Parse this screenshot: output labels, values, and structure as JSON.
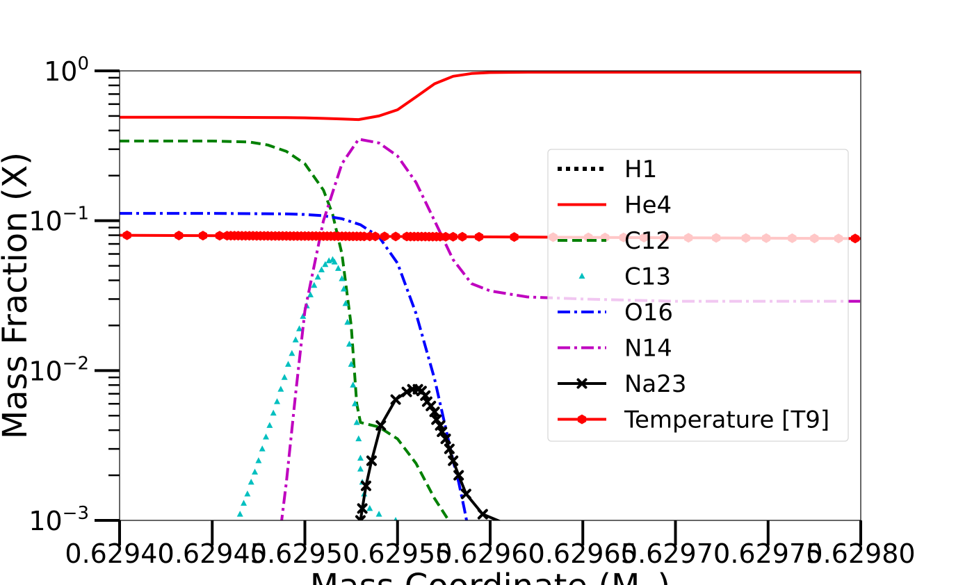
{
  "chart_data": {
    "type": "line",
    "xlabel": "Mass Coordinate (M",
    "xlabel_sub": "⊙",
    "xlabel_close": ")",
    "ylabel": "Mass Fraction (X)",
    "xlim": [
      0.6294,
      0.6298
    ],
    "ylim": [
      0.001,
      1
    ],
    "yscale": "log",
    "x_ticks": [
      {
        "value": 0.6294,
        "label": "0.62940"
      },
      {
        "value": 0.62945,
        "label": "0.62945"
      },
      {
        "value": 0.6295,
        "label": "0.62950"
      },
      {
        "value": 0.62955,
        "label": "0.62955"
      },
      {
        "value": 0.6296,
        "label": "0.62960"
      },
      {
        "value": 0.62965,
        "label": "0.62965"
      },
      {
        "value": 0.6297,
        "label": "0.62970"
      },
      {
        "value": 0.62975,
        "label": "0.62975"
      },
      {
        "value": 0.6298,
        "label": "0.62980"
      }
    ],
    "y_ticks": [
      {
        "value": 1,
        "base": "10",
        "exp": "0"
      },
      {
        "value": 0.1,
        "base": "10",
        "exp": "−1"
      },
      {
        "value": 0.01,
        "base": "10",
        "exp": "−2"
      },
      {
        "value": 0.001,
        "base": "10",
        "exp": "−3"
      }
    ],
    "grid": false,
    "legend_position": "center-right",
    "series": [
      {
        "name": "H1",
        "color": "#000000",
        "style": "dotted",
        "marker": "none",
        "points": []
      },
      {
        "name": "He4",
        "color": "#ff0000",
        "style": "solid",
        "marker": "none",
        "points": [
          [
            0.6294,
            0.49
          ],
          [
            0.62945,
            0.49
          ],
          [
            0.62949,
            0.488
          ],
          [
            0.6295,
            0.486
          ],
          [
            0.62951,
            0.482
          ],
          [
            0.62952,
            0.477
          ],
          [
            0.629529,
            0.473
          ],
          [
            0.62954,
            0.5
          ],
          [
            0.62955,
            0.55
          ],
          [
            0.62956,
            0.67
          ],
          [
            0.62957,
            0.82
          ],
          [
            0.62958,
            0.92
          ],
          [
            0.62959,
            0.96
          ],
          [
            0.6296,
            0.975
          ],
          [
            0.62962,
            0.98
          ],
          [
            0.6298,
            0.98
          ]
        ]
      },
      {
        "name": "C12",
        "color": "#008000",
        "style": "dashed",
        "marker": "none",
        "points": [
          [
            0.6294,
            0.34
          ],
          [
            0.62945,
            0.34
          ],
          [
            0.62947,
            0.335
          ],
          [
            0.62948,
            0.32
          ],
          [
            0.62949,
            0.29
          ],
          [
            0.6295,
            0.24
          ],
          [
            0.62951,
            0.16
          ],
          [
            0.629515,
            0.11
          ],
          [
            0.62952,
            0.06
          ],
          [
            0.629525,
            0.02
          ],
          [
            0.629528,
            0.006
          ],
          [
            0.62953,
            0.0045
          ],
          [
            0.62954,
            0.0042
          ],
          [
            0.62955,
            0.0035
          ],
          [
            0.62956,
            0.0024
          ],
          [
            0.62957,
            0.0014
          ],
          [
            0.62958,
            0.0009
          ]
        ]
      },
      {
        "name": "C13",
        "color": "#00bfbf",
        "style": "none",
        "marker": "triangle",
        "points": [
          [
            0.629463,
            0.00095
          ],
          [
            0.629465,
            0.0011
          ],
          [
            0.629467,
            0.0013
          ],
          [
            0.629469,
            0.0015
          ],
          [
            0.629471,
            0.0018
          ],
          [
            0.629473,
            0.0021
          ],
          [
            0.629475,
            0.0025
          ],
          [
            0.629477,
            0.003
          ],
          [
            0.629479,
            0.0036
          ],
          [
            0.629481,
            0.0043
          ],
          [
            0.629483,
            0.0052
          ],
          [
            0.629485,
            0.0062
          ],
          [
            0.629487,
            0.0075
          ],
          [
            0.629489,
            0.009
          ],
          [
            0.629491,
            0.011
          ],
          [
            0.629493,
            0.013
          ],
          [
            0.629495,
            0.016
          ],
          [
            0.629497,
            0.019
          ],
          [
            0.629499,
            0.023
          ],
          [
            0.629501,
            0.027
          ],
          [
            0.629503,
            0.032
          ],
          [
            0.629505,
            0.037
          ],
          [
            0.629507,
            0.042
          ],
          [
            0.629509,
            0.047
          ],
          [
            0.629511,
            0.051
          ],
          [
            0.629513,
            0.054
          ],
          [
            0.629515,
            0.055
          ],
          [
            0.629516,
            0.053
          ],
          [
            0.629518,
            0.048
          ],
          [
            0.62952,
            0.041
          ],
          [
            0.629521,
            0.035
          ],
          [
            0.629522,
            0.028
          ],
          [
            0.629523,
            0.021
          ],
          [
            0.629524,
            0.015
          ],
          [
            0.629525,
            0.011
          ],
          [
            0.629526,
            0.008
          ],
          [
            0.629527,
            0.006
          ],
          [
            0.629528,
            0.0045
          ],
          [
            0.629529,
            0.0035
          ],
          [
            0.62953,
            0.0026
          ],
          [
            0.62953,
            0.0022
          ],
          [
            0.629531,
            0.0018
          ],
          [
            0.629532,
            0.0015
          ],
          [
            0.629535,
            0.0012
          ],
          [
            0.62954,
            0.0011
          ],
          [
            0.629549,
            0.001
          ]
        ]
      },
      {
        "name": "O16",
        "color": "#0000ff",
        "style": "dashdot",
        "marker": "none",
        "points": [
          [
            0.6294,
            0.112
          ],
          [
            0.62945,
            0.112
          ],
          [
            0.62949,
            0.111
          ],
          [
            0.6295,
            0.11
          ],
          [
            0.62951,
            0.108
          ],
          [
            0.62952,
            0.103
          ],
          [
            0.62953,
            0.094
          ],
          [
            0.62954,
            0.078
          ],
          [
            0.62955,
            0.052
          ],
          [
            0.62956,
            0.024
          ],
          [
            0.62957,
            0.0088
          ],
          [
            0.62958,
            0.0025
          ],
          [
            0.629583,
            0.0018
          ],
          [
            0.629586,
            0.0012
          ],
          [
            0.629588,
            0.0009
          ]
        ]
      },
      {
        "name": "N14",
        "color": "#bf00bf",
        "style": "dashdot",
        "marker": "none",
        "points": [
          [
            0.629487,
            0.0009
          ],
          [
            0.62949,
            0.0018
          ],
          [
            0.629495,
            0.007
          ],
          [
            0.6295,
            0.025
          ],
          [
            0.62951,
            0.1
          ],
          [
            0.62952,
            0.24
          ],
          [
            0.629529,
            0.35
          ],
          [
            0.62954,
            0.33
          ],
          [
            0.62955,
            0.27
          ],
          [
            0.62956,
            0.18
          ],
          [
            0.62957,
            0.1
          ],
          [
            0.62958,
            0.055
          ],
          [
            0.62959,
            0.038
          ],
          [
            0.6296,
            0.034
          ],
          [
            0.62962,
            0.031
          ],
          [
            0.62965,
            0.03
          ],
          [
            0.6297,
            0.029
          ],
          [
            0.6298,
            0.029
          ]
        ]
      },
      {
        "name": "Na23",
        "color": "#000000",
        "style": "solid",
        "marker": "x",
        "points": [
          [
            0.629529,
            0.0009
          ],
          [
            0.62953,
            0.001
          ],
          [
            0.629531,
            0.0012
          ],
          [
            0.629533,
            0.0017
          ],
          [
            0.629536,
            0.0025
          ],
          [
            0.629541,
            0.0043
          ],
          [
            0.629549,
            0.0064
          ],
          [
            0.629555,
            0.0072
          ],
          [
            0.629558,
            0.0075
          ],
          [
            0.629561,
            0.0075
          ],
          [
            0.629563,
            0.0073
          ],
          [
            0.629565,
            0.0068
          ],
          [
            0.629566,
            0.0062
          ],
          [
            0.629568,
            0.0058
          ],
          [
            0.62957,
            0.0053
          ],
          [
            0.629571,
            0.0047
          ],
          [
            0.629573,
            0.0043
          ],
          [
            0.629574,
            0.0039
          ],
          [
            0.629576,
            0.0035
          ],
          [
            0.629578,
            0.003
          ],
          [
            0.62958,
            0.0025
          ],
          [
            0.629583,
            0.002
          ],
          [
            0.629587,
            0.0015
          ],
          [
            0.629596,
            0.0011
          ],
          [
            0.629613,
            0.0009
          ]
        ]
      },
      {
        "name": "Temperature [T9]",
        "color": "#ff0000",
        "style": "solid",
        "marker": "hexagon",
        "points": [
          [
            0.6294,
            0.08
          ],
          [
            0.6298,
            0.076
          ]
        ],
        "marker_x": [
          0.629404,
          0.629432,
          0.629445,
          0.629454,
          0.629458,
          0.62946,
          0.629462,
          0.629464,
          0.629466,
          0.629468,
          0.62947,
          0.629472,
          0.629474,
          0.629476,
          0.629478,
          0.62948,
          0.629482,
          0.629484,
          0.629486,
          0.629488,
          0.62949,
          0.629492,
          0.629494,
          0.629496,
          0.629498,
          0.6295,
          0.629502,
          0.629504,
          0.629506,
          0.629508,
          0.62951,
          0.629512,
          0.629514,
          0.629516,
          0.629518,
          0.62952,
          0.629522,
          0.629524,
          0.629526,
          0.629528,
          0.62953,
          0.629532,
          0.629535,
          0.629538,
          0.629543,
          0.629549,
          0.629555,
          0.629557,
          0.629559,
          0.629561,
          0.629563,
          0.629565,
          0.629567,
          0.629569,
          0.629571,
          0.629573,
          0.629576,
          0.62958,
          0.629585,
          0.629594,
          0.629613,
          0.629634,
          0.629653,
          0.629662,
          0.629672,
          0.629683,
          0.629694,
          0.629707,
          0.629722,
          0.629738,
          0.629749,
          0.629763,
          0.629775,
          0.629788,
          0.629797
        ]
      }
    ],
    "legend_entries": [
      "H1",
      "He4",
      "C12",
      "C13",
      "O16",
      "N14",
      "Na23",
      "Temperature [T9]"
    ]
  }
}
